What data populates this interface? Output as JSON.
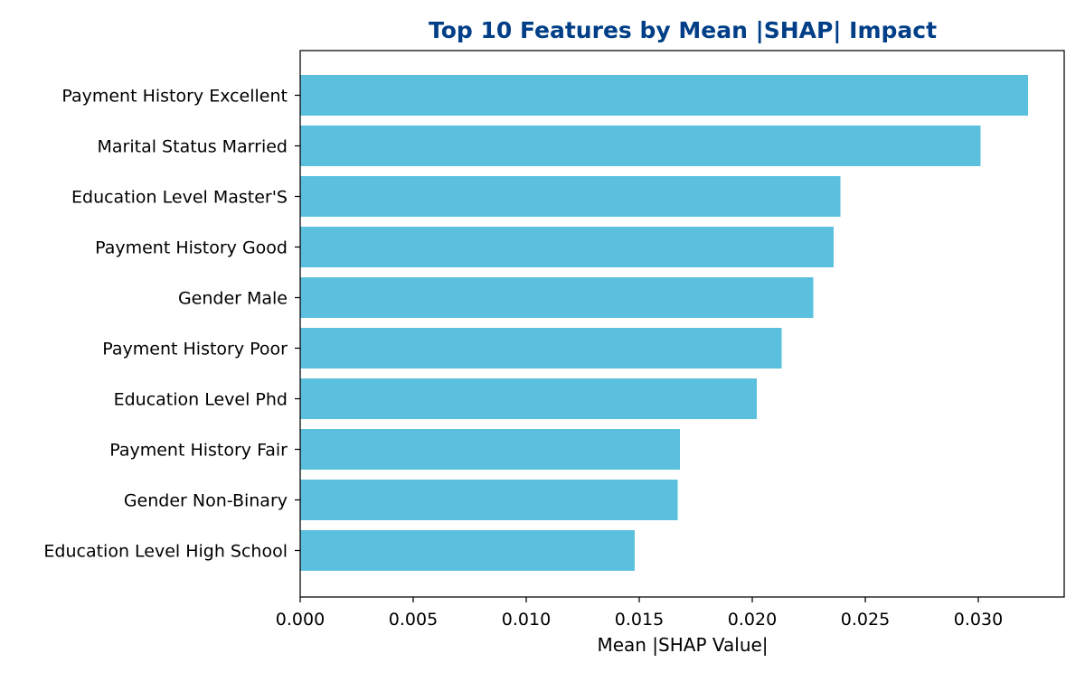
{
  "chart_data": {
    "type": "bar",
    "orientation": "horizontal",
    "title": "Top 10 Features by Mean |SHAP| Impact",
    "xlabel": "Mean |SHAP Value|",
    "ylabel": "",
    "xlim": [
      0,
      0.0338
    ],
    "x_ticks": [
      "0.000",
      "0.005",
      "0.010",
      "0.015",
      "0.020",
      "0.025",
      "0.030"
    ],
    "x_tick_values": [
      0,
      0.005,
      0.01,
      0.015,
      0.02,
      0.025,
      0.03
    ],
    "categories": [
      "Payment History Excellent",
      "Marital Status Married",
      "Education Level Master'S",
      "Payment History Good",
      "Gender Male",
      "Payment History Poor",
      "Education Level Phd",
      "Payment History Fair",
      "Gender Non-Binary",
      "Education Level High School"
    ],
    "values": [
      0.0322,
      0.0301,
      0.0239,
      0.0236,
      0.0227,
      0.0213,
      0.0202,
      0.0168,
      0.0167,
      0.0148
    ],
    "grid": false,
    "legend": "none",
    "colors": {
      "bar": "#5bc0de",
      "title": "#003f87",
      "axis": "#000000"
    }
  }
}
